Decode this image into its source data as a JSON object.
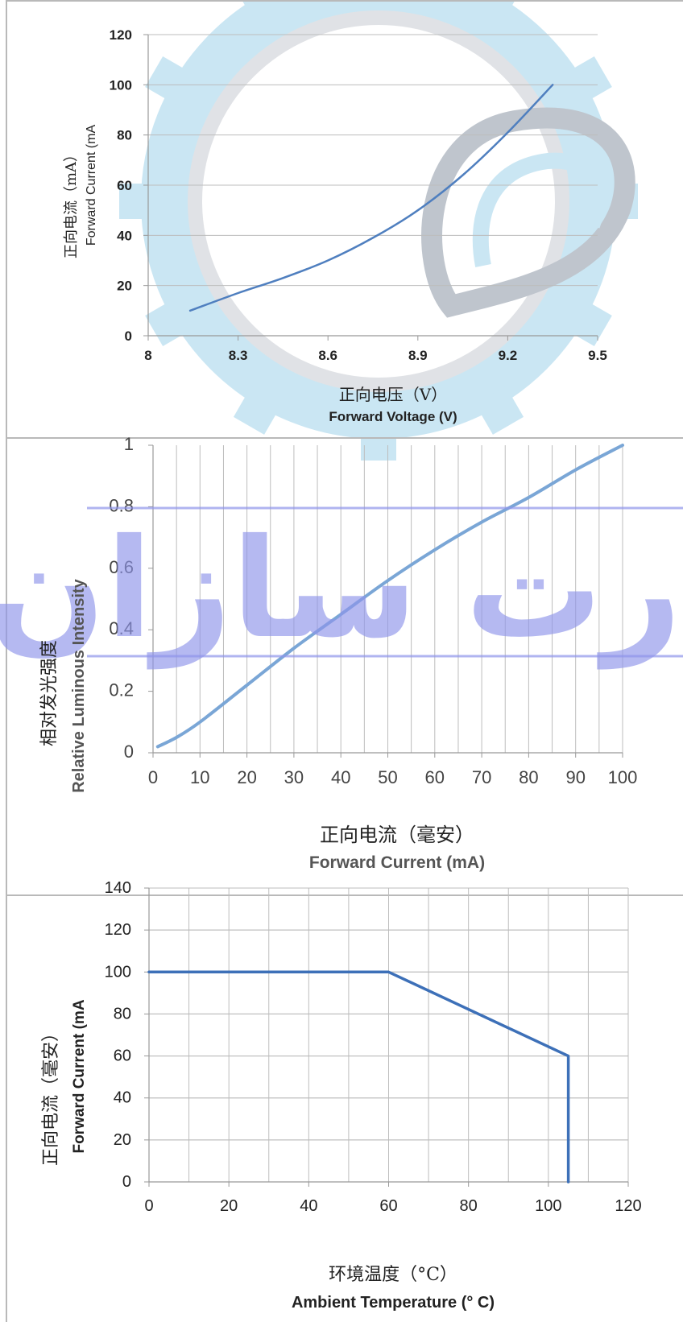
{
  "chart_data": [
    {
      "type": "line",
      "title": "",
      "xlabel_cn": "正向电压（V）",
      "xlabel_en": "Forward Voltage (V)",
      "ylabel_cn": "正向电流（mA）",
      "ylabel_en": "Forward Current (mA",
      "xlim": [
        8,
        9.5
      ],
      "ylim": [
        0,
        120
      ],
      "x_ticks": [
        "8",
        "8.3",
        "8.6",
        "8.9",
        "9.2",
        "9.5"
      ],
      "y_ticks": [
        "0",
        "20",
        "40",
        "60",
        "80",
        "100",
        "120"
      ],
      "grid": "horizontal",
      "series": [
        {
          "color": "#4f7fbf",
          "x": [
            8.14,
            8.3,
            8.45,
            8.6,
            8.75,
            8.9,
            9.05,
            9.2,
            9.35
          ],
          "y": [
            10,
            17,
            23,
            30,
            39,
            50,
            64,
            81,
            100
          ]
        }
      ]
    },
    {
      "type": "line",
      "title": "",
      "xlabel_cn": "正向电流（毫安）",
      "xlabel_en": "Forward Current (mA)",
      "ylabel_cn": "相对发光强度",
      "ylabel_en": "Relative Luminous Intensity",
      "xlim": [
        0,
        100
      ],
      "ylim": [
        0,
        1
      ],
      "x_ticks": [
        "0",
        "10",
        "20",
        "30",
        "40",
        "50",
        "60",
        "70",
        "80",
        "90",
        "100"
      ],
      "y_ticks": [
        "0",
        "0.2",
        "0.4",
        "0.6",
        "0.8",
        "1"
      ],
      "grid": "vertical",
      "series": [
        {
          "color": "#7aa6d6",
          "x": [
            1,
            5,
            10,
            20,
            30,
            40,
            50,
            60,
            70,
            80,
            90,
            100
          ],
          "y": [
            0.02,
            0.05,
            0.1,
            0.22,
            0.34,
            0.45,
            0.56,
            0.66,
            0.75,
            0.83,
            0.92,
            1.0
          ]
        }
      ]
    },
    {
      "type": "line",
      "title": "",
      "xlabel_cn": "环境温度（°C）",
      "xlabel_en": "Ambient Temperature (° C)",
      "ylabel_cn": "正向电流（毫安）",
      "ylabel_en": "Forward Current (mA",
      "xlim": [
        0,
        120
      ],
      "ylim": [
        0,
        140
      ],
      "x_ticks": [
        "0",
        "20",
        "40",
        "60",
        "80",
        "100",
        "120"
      ],
      "y_ticks": [
        "0",
        "20",
        "40",
        "60",
        "80",
        "100",
        "120",
        "140"
      ],
      "grid": "both",
      "series": [
        {
          "color": "#3d70b8",
          "x": [
            0,
            60,
            105,
            105
          ],
          "y": [
            100,
            100,
            60,
            0
          ]
        }
      ]
    }
  ],
  "watermark": {
    "text": "پارت سازان",
    "ring_colors": [
      "#9fd3ea",
      "#8c97a6",
      "#c8ccd2"
    ],
    "text_color": "#8f95ea"
  }
}
